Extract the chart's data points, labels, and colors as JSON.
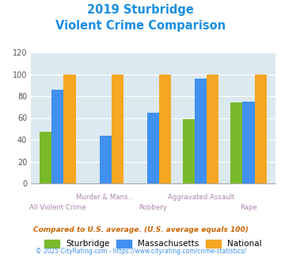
{
  "title_line1": "2019 Sturbridge",
  "title_line2": "Violent Crime Comparison",
  "category_labels_top": [
    "",
    "Murder & Mans...",
    "",
    "Aggravated Assault",
    ""
  ],
  "category_labels_bot": [
    "All Violent Crime",
    "",
    "Robbery",
    "",
    "Rape"
  ],
  "sturbridge": [
    47,
    0,
    0,
    59,
    74
  ],
  "massachusetts": [
    86,
    44,
    65,
    96,
    75
  ],
  "national": [
    100,
    100,
    100,
    100,
    100
  ],
  "colors": {
    "sturbridge": "#7aba2a",
    "massachusetts": "#4090f0",
    "national": "#f5a623"
  },
  "ylim": [
    0,
    120
  ],
  "yticks": [
    0,
    20,
    40,
    60,
    80,
    100,
    120
  ],
  "title_color": "#1a8fe0",
  "plot_bg": "#dce9f0",
  "legend_labels": [
    "Sturbridge",
    "Massachusetts",
    "National"
  ],
  "footnote1": "Compared to U.S. average. (U.S. average equals 100)",
  "footnote2": "© 2025 CityRating.com - https://www.cityrating.com/crime-statistics/",
  "footnote1_color": "#cc6600",
  "footnote2_color": "#4090f0",
  "label_color": "#aa88aa"
}
